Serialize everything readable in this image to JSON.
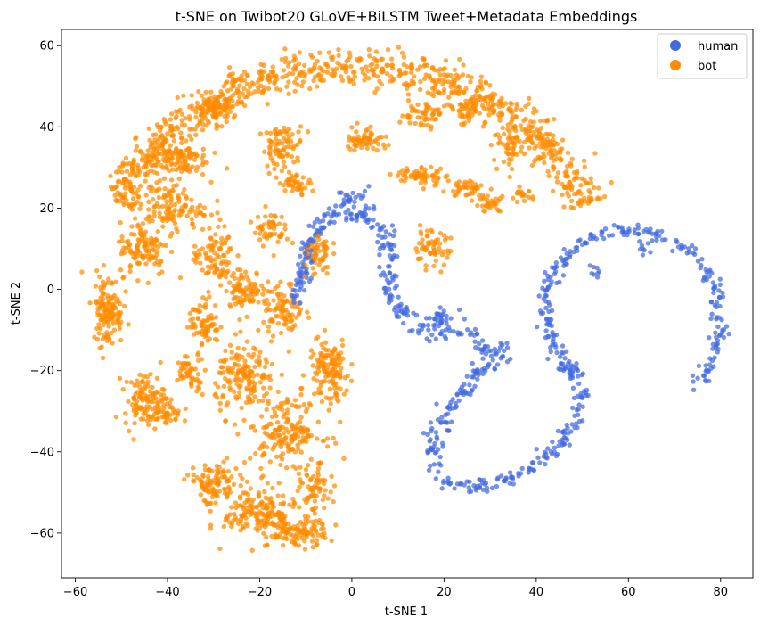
{
  "chart_data": {
    "type": "scatter",
    "title": "t-SNE on Twibot20 GLoVE+BiLSTM Tweet+Metadata Embeddings",
    "xlabel": "t-SNE 1",
    "ylabel": "t-SNE 2",
    "xlim": [
      -63,
      87
    ],
    "ylim": [
      -71,
      64
    ],
    "xticks": [
      -60,
      -40,
      -20,
      0,
      20,
      40,
      60,
      80
    ],
    "yticks": [
      -60,
      -40,
      -20,
      0,
      20,
      40,
      60
    ],
    "grid": false,
    "legend_position": "top-right",
    "series": [
      {
        "name": "human",
        "color": "#4169e1",
        "clusters": [
          {
            "shape": "curve",
            "path": [
              [
                75,
                -23
              ],
              [
                78,
                -18
              ],
              [
                80,
                -10
              ],
              [
                79,
                0
              ],
              [
                76,
                7
              ],
              [
                70,
                12
              ],
              [
                62,
                15
              ],
              [
                55,
                14
              ],
              [
                50,
                11
              ],
              [
                45,
                6
              ],
              [
                42,
                0
              ],
              [
                42,
                -8
              ],
              [
                44,
                -14
              ],
              [
                48,
                -20
              ],
              [
                50,
                -25
              ],
              [
                49,
                -32
              ],
              [
                45,
                -38
              ],
              [
                40,
                -43
              ],
              [
                32,
                -48
              ],
              [
                25,
                -49
              ],
              [
                20,
                -47
              ],
              [
                18,
                -42
              ],
              [
                18,
                -36
              ],
              [
                21,
                -30
              ],
              [
                24,
                -25
              ],
              [
                28,
                -20
              ],
              [
                29,
                -15
              ],
              [
                27,
                -11
              ],
              [
                23,
                -10
              ],
              [
                19,
                -11
              ],
              [
                14,
                -9
              ],
              [
                10,
                -5
              ],
              [
                8,
                0
              ],
              [
                8,
                6
              ],
              [
                8,
                10
              ],
              [
                7,
                14
              ],
              [
                4,
                17
              ],
              [
                0,
                18
              ],
              [
                -4,
                18
              ],
              [
                -7,
                16
              ],
              [
                -9,
                12
              ],
              [
                -10,
                7
              ],
              [
                -11,
                2
              ],
              [
                -13,
                -3
              ]
            ],
            "n": 720,
            "spread": 0.9
          },
          {
            "shape": "blob",
            "cx": 0,
            "cy": 22,
            "rx": 4,
            "ry": 3,
            "n": 30
          },
          {
            "shape": "blob",
            "cx": 32,
            "cy": -16,
            "rx": 3,
            "ry": 3,
            "n": 25
          },
          {
            "shape": "blob",
            "cx": 47,
            "cy": -20,
            "rx": 2,
            "ry": 2,
            "n": 12
          },
          {
            "shape": "blob",
            "cx": 63,
            "cy": 10,
            "rx": 1.5,
            "ry": 1.5,
            "n": 8
          },
          {
            "shape": "blob",
            "cx": 19,
            "cy": -7,
            "rx": 3,
            "ry": 3,
            "n": 30
          },
          {
            "shape": "blob",
            "cx": 53,
            "cy": 4,
            "rx": 1.5,
            "ry": 1.5,
            "n": 8
          }
        ]
      },
      {
        "name": "bot",
        "color": "#ff8c00",
        "clusters": [
          {
            "shape": "arc",
            "cx": 0,
            "cy": 0,
            "r": 55,
            "from": 22,
            "to": 157,
            "n": 900,
            "spread": 2.2
          },
          {
            "shape": "blob",
            "cx": -45,
            "cy": 10,
            "rx": 5,
            "ry": 6,
            "n": 110
          },
          {
            "shape": "blob",
            "cx": -53,
            "cy": -5,
            "rx": 3,
            "ry": 8,
            "n": 130
          },
          {
            "shape": "blob",
            "cx": -45,
            "cy": -27,
            "rx": 4,
            "ry": 6,
            "n": 110
          },
          {
            "shape": "blob",
            "cx": -40,
            "cy": 20,
            "rx": 7,
            "ry": 5,
            "n": 120
          },
          {
            "shape": "blob",
            "cx": -38,
            "cy": 32,
            "rx": 6,
            "ry": 4,
            "n": 110
          },
          {
            "shape": "blob",
            "cx": -30,
            "cy": 8,
            "rx": 4,
            "ry": 7,
            "n": 90
          },
          {
            "shape": "blob",
            "cx": -32,
            "cy": -8,
            "rx": 3,
            "ry": 5,
            "n": 70
          },
          {
            "shape": "blob",
            "cx": -23,
            "cy": 0,
            "rx": 4,
            "ry": 4,
            "n": 80
          },
          {
            "shape": "blob",
            "cx": -18,
            "cy": 15,
            "rx": 3,
            "ry": 4,
            "n": 50
          },
          {
            "shape": "blob",
            "cx": -8,
            "cy": 9,
            "rx": 3,
            "ry": 5,
            "n": 60
          },
          {
            "shape": "blob",
            "cx": -15,
            "cy": -5,
            "rx": 4,
            "ry": 6,
            "n": 90
          },
          {
            "shape": "blob",
            "cx": -23,
            "cy": -22,
            "rx": 6,
            "ry": 8,
            "n": 160
          },
          {
            "shape": "blob",
            "cx": -5,
            "cy": -20,
            "rx": 4,
            "ry": 7,
            "n": 130
          },
          {
            "shape": "blob",
            "cx": -14,
            "cy": -35,
            "rx": 7,
            "ry": 7,
            "n": 170
          },
          {
            "shape": "blob",
            "cx": -30,
            "cy": -48,
            "rx": 5,
            "ry": 5,
            "n": 100
          },
          {
            "shape": "blob",
            "cx": -20,
            "cy": -55,
            "rx": 7,
            "ry": 6,
            "n": 170
          },
          {
            "shape": "blob",
            "cx": -12,
            "cy": -60,
            "rx": 6,
            "ry": 3,
            "n": 100
          },
          {
            "shape": "blob",
            "cx": -8,
            "cy": -50,
            "rx": 3,
            "ry": 6,
            "n": 70
          },
          {
            "shape": "blob",
            "cx": -35,
            "cy": -20,
            "rx": 3,
            "ry": 4,
            "n": 50
          },
          {
            "shape": "blob",
            "cx": -40,
            "cy": -30,
            "rx": 3,
            "ry": 3,
            "n": 40
          },
          {
            "shape": "blob",
            "cx": -15,
            "cy": 35,
            "rx": 4,
            "ry": 5,
            "n": 80
          },
          {
            "shape": "blob",
            "cx": -12,
            "cy": 26,
            "rx": 3,
            "ry": 2,
            "n": 40
          },
          {
            "shape": "blob",
            "cx": 3,
            "cy": 37,
            "rx": 4,
            "ry": 3,
            "n": 60
          },
          {
            "shape": "blob",
            "cx": 15,
            "cy": 28,
            "rx": 5,
            "ry": 2,
            "n": 60
          },
          {
            "shape": "blob",
            "cx": 25,
            "cy": 25,
            "rx": 4,
            "ry": 2,
            "n": 40
          },
          {
            "shape": "blob",
            "cx": 15,
            "cy": 43,
            "rx": 4,
            "ry": 3,
            "n": 50
          },
          {
            "shape": "blob",
            "cx": 25,
            "cy": 44,
            "rx": 3,
            "ry": 3,
            "n": 40
          },
          {
            "shape": "blob",
            "cx": -30,
            "cy": 44,
            "rx": 4,
            "ry": 3,
            "n": 60
          },
          {
            "shape": "blob",
            "cx": 37,
            "cy": 23,
            "rx": 2,
            "ry": 1.5,
            "n": 20
          },
          {
            "shape": "blob",
            "cx": 17,
            "cy": 10,
            "rx": 4,
            "ry": 4,
            "n": 60
          },
          {
            "shape": "blob",
            "cx": 35,
            "cy": 35,
            "rx": 4,
            "ry": 4,
            "n": 50
          },
          {
            "shape": "blob",
            "cx": 30,
            "cy": 21,
            "rx": 3,
            "ry": 2,
            "n": 30
          }
        ]
      }
    ]
  }
}
